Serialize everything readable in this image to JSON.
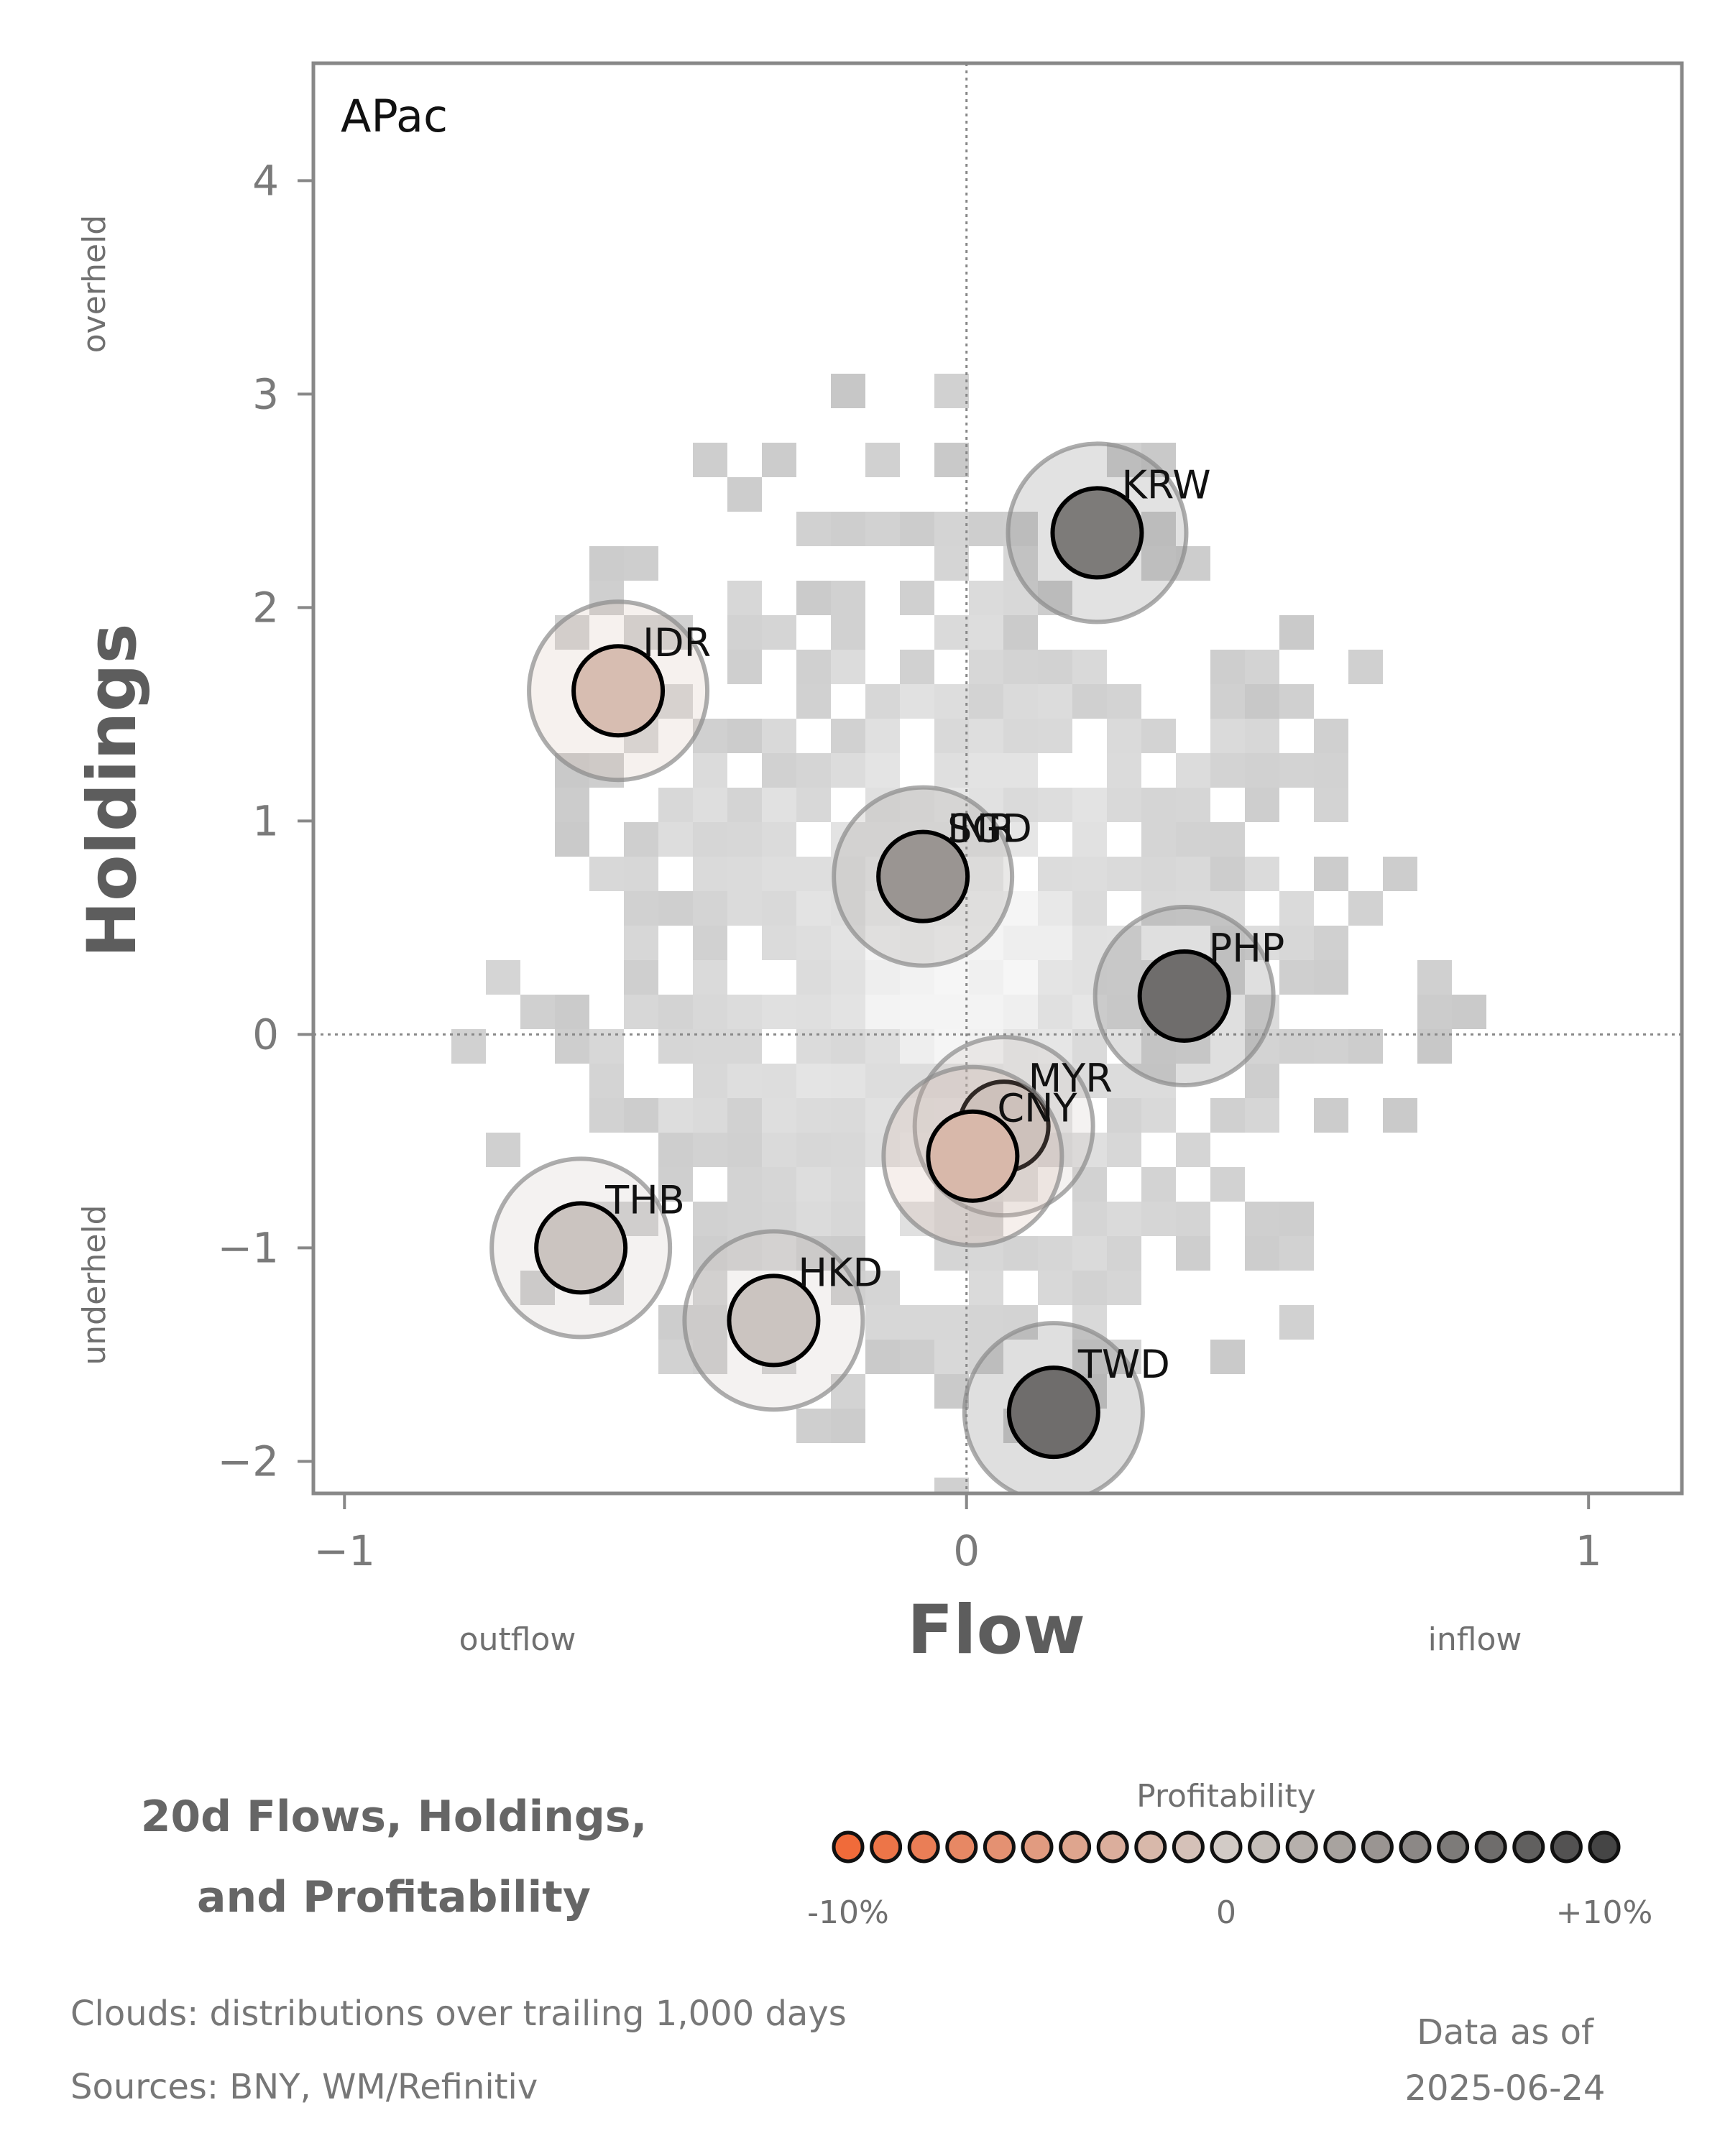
{
  "chart_data": {
    "type": "scatter",
    "panel_title": "APac",
    "xlabel": "Flow",
    "ylabel": "Holdings",
    "x_low_label": "outflow",
    "x_high_label": "inflow",
    "y_high_label": "overheld",
    "y_low_label": "underheld",
    "xlim": [
      -1.05,
      1.15
    ],
    "ylim": [
      -2.15,
      4.55
    ],
    "xticks": [
      -1,
      0,
      1
    ],
    "xtick_labels": [
      "−1",
      "0",
      "1"
    ],
    "yticks": [
      -2,
      -1,
      0,
      1,
      2,
      3,
      4
    ],
    "ytick_labels": [
      "−2",
      "−1",
      "0",
      "1",
      "2",
      "3",
      "4"
    ],
    "reference_lines": {
      "x": 0,
      "y": 0
    },
    "points": [
      {
        "label": "KRW",
        "x": 0.21,
        "y": 2.35,
        "profitability": 0.06
      },
      {
        "label": "IDR",
        "x": -0.56,
        "y": 1.61,
        "profitability": -0.015
      },
      {
        "label": "SGD",
        "x": -0.07,
        "y": 0.74,
        "profitability": 0.04
      },
      {
        "label": "INR",
        "x": -0.07,
        "y": 0.74,
        "profitability": 0.04
      },
      {
        "label": "PHP",
        "x": 0.35,
        "y": 0.18,
        "profitability": 0.07
      },
      {
        "label": "MYR",
        "x": 0.06,
        "y": -0.43,
        "profitability": 0.005
      },
      {
        "label": "CNY",
        "x": 0.01,
        "y": -0.57,
        "profitability": -0.02
      },
      {
        "label": "THB",
        "x": -0.62,
        "y": -1.0,
        "profitability": 0.005
      },
      {
        "label": "HKD",
        "x": -0.31,
        "y": -1.34,
        "profitability": 0.005
      },
      {
        "label": "TWD",
        "x": 0.14,
        "y": -1.77,
        "profitability": 0.07
      }
    ],
    "cloud_description": "distributions over trailing 1,000 days",
    "legend": {
      "title": "Profitability",
      "min_label": "-10%",
      "mid_label": "0",
      "max_label": "+10%",
      "low_color": "#f06b3a",
      "mid_color": "#d2cbc6",
      "high_color": "#454545"
    }
  },
  "legend_heading": [
    "20d Flows, Holdings,",
    "and Profitability"
  ],
  "footer": {
    "clouds": "Clouds:  distributions over trailing 1,000 days",
    "sources": "Sources:  BNY, WM/Refinitiv",
    "data_as_of_label": "Data as of",
    "data_as_of_date": "2025-06-24"
  }
}
